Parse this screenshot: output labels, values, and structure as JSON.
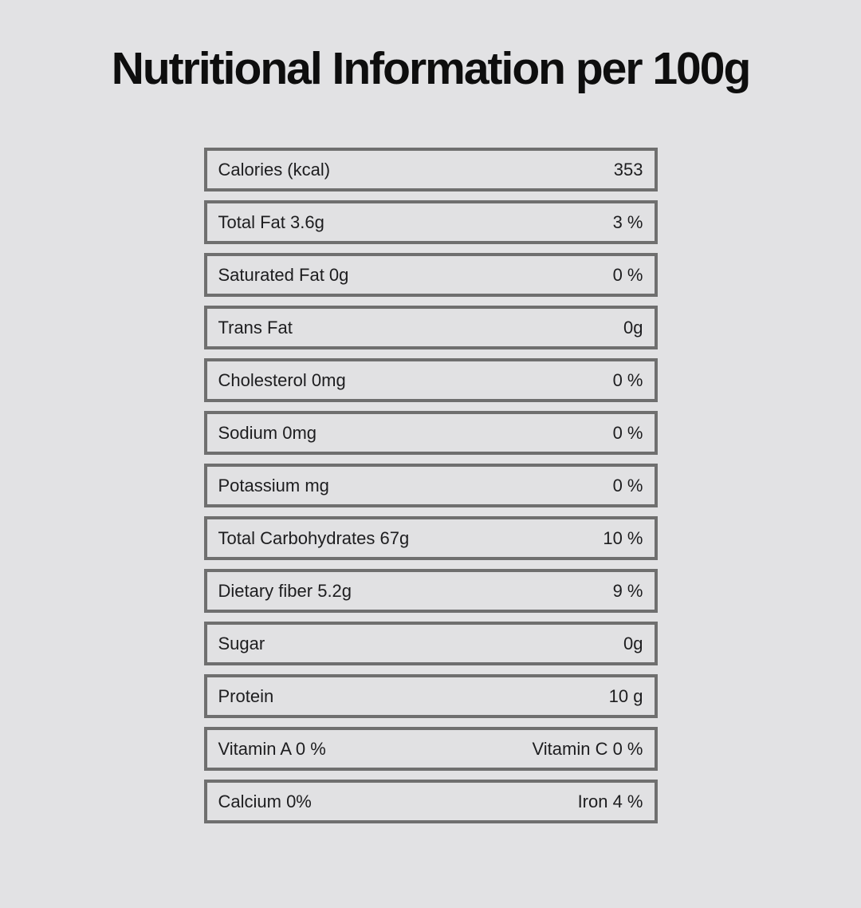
{
  "title": "Nutritional Information per 100g",
  "colors": {
    "page_background": "#e2e2e4",
    "row_fill": "#e1e1e3",
    "row_border": "#6f6f6f",
    "text": "#1d1d1f",
    "title_text": "#0e0e0e"
  },
  "table": {
    "rows": [
      {
        "label": "Calories (kcal)",
        "value": "353"
      },
      {
        "label": "Total Fat 3.6g",
        "value": "3 %"
      },
      {
        "label": "Saturated Fat 0g",
        "value": "0 %"
      },
      {
        "label": "Trans Fat",
        "value": "0g"
      },
      {
        "label": "Cholesterol 0mg",
        "value": "0 %"
      },
      {
        "label": "Sodium 0mg",
        "value": "0 %"
      },
      {
        "label": "Potassium mg",
        "value": "0 %"
      },
      {
        "label": "Total Carbohydrates 67g",
        "value": "10 %"
      },
      {
        "label": "Dietary fiber 5.2g",
        "value": "9 %"
      },
      {
        "label": "Sugar",
        "value": "0g"
      },
      {
        "label": "Protein",
        "value": "10 g"
      },
      {
        "label": "Vitamin A 0 %",
        "value": "Vitamin C 0 %"
      },
      {
        "label": "Calcium 0%",
        "value": "Iron 4 %"
      }
    ]
  }
}
